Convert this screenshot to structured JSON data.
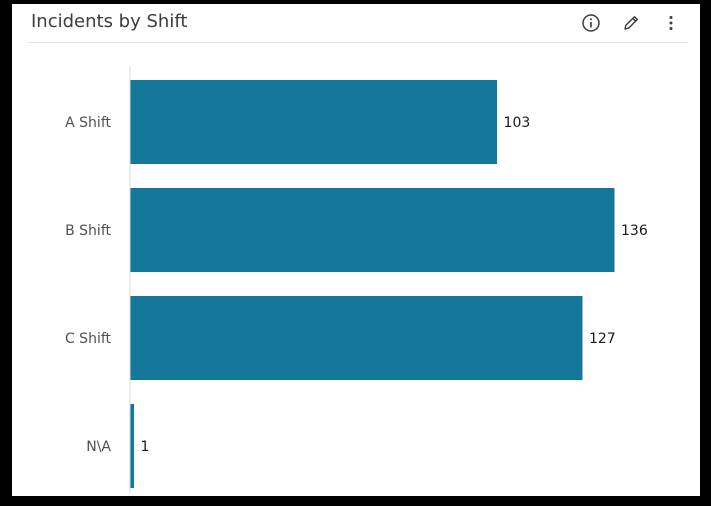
{
  "header": {
    "title": "Incidents by Shift",
    "icons": [
      "info-icon",
      "pencil-icon",
      "more-vertical-icon"
    ]
  },
  "colors": {
    "bar": "#137899",
    "axis": "#d9d9d9",
    "title": "#3c3c3c",
    "icon": "#3c3c3c"
  },
  "chart_data": {
    "type": "bar",
    "orientation": "horizontal",
    "title": "Incidents by Shift",
    "categories": [
      "A Shift",
      "B Shift",
      "C Shift",
      "N\\A"
    ],
    "values": [
      103,
      136,
      127,
      1
    ],
    "xlim": [
      0,
      136
    ],
    "data_labels": true,
    "grid": false,
    "legend": "none"
  }
}
